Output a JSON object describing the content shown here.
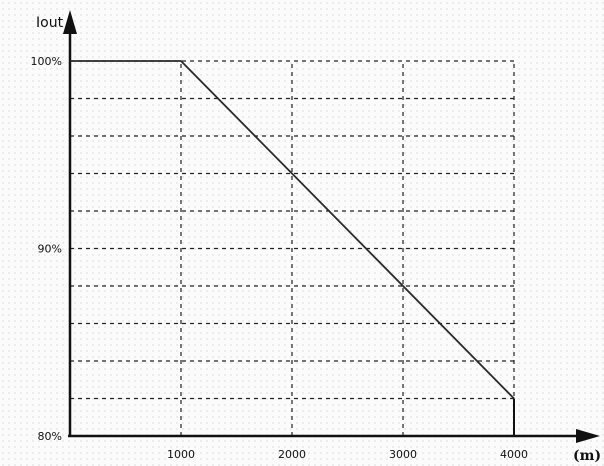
{
  "chart_data": {
    "type": "line",
    "title": "",
    "ylabel": "Iout",
    "xlabel": "(m)",
    "x": [
      0,
      1000,
      4000
    ],
    "series": [
      {
        "values": [
          100,
          100,
          82
        ]
      }
    ],
    "xlim": [
      0,
      4000
    ],
    "ylim": [
      80,
      100
    ],
    "xticks": [
      1000,
      2000,
      3000,
      4000
    ],
    "xtick_labels": [
      "1000",
      "2000",
      "3000",
      "4000"
    ],
    "yticks": [
      80,
      90,
      100
    ],
    "ytick_labels": [
      "80%",
      "90%",
      "100%"
    ],
    "grid": true,
    "grid_style": "dashed",
    "grid_y_step": 2,
    "end_value_x": 4000,
    "colors": {
      "line": "#2a2a2a",
      "axis": "#111111",
      "grid": "#222222"
    }
  }
}
